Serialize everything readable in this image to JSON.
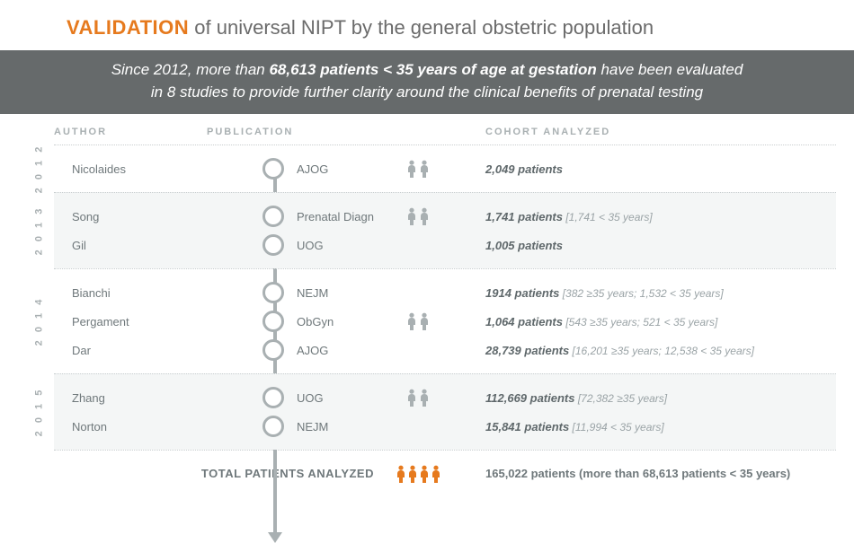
{
  "title": {
    "highlight": "VALIDATION",
    "rest": " of universal NIPT by the general obstetric population"
  },
  "banner": {
    "l1_pre": "Since 2012, more than ",
    "l1_bold": "68,613 patients < 35 years of age at gestation",
    "l1_post": " have been evaluated",
    "l2": "in 8 studies to provide further clarity around the clinical benefits of prenatal testing"
  },
  "headers": {
    "author": "AUTHOR",
    "publication": "PUBLICATION",
    "cohort": "COHORT ANALYZED"
  },
  "colors": {
    "accent": "#e67a1e",
    "grey": "#a9b0b2"
  },
  "years": [
    {
      "year": "2012",
      "alt": false,
      "iconRow": 0,
      "studies": [
        {
          "author": "Nicolaides",
          "pub": "AJOG",
          "bold": "2,049 patients",
          "note": ""
        }
      ]
    },
    {
      "year": "2013",
      "alt": true,
      "iconRow": 0,
      "studies": [
        {
          "author": "Song",
          "pub": "Prenatal Diagn",
          "bold": "1,741 patients",
          "note": " [1,741 < 35 years]"
        },
        {
          "author": "Gil",
          "pub": "UOG",
          "bold": "1,005 patients",
          "note": ""
        }
      ]
    },
    {
      "year": "2014",
      "alt": false,
      "iconRow": 1,
      "studies": [
        {
          "author": "Bianchi",
          "pub": "NEJM",
          "bold": "1914 patients",
          "note": " [382 ≥35 years; 1,532 < 35 years]"
        },
        {
          "author": "Pergament",
          "pub": "ObGyn",
          "bold": "1,064 patients",
          "note": " [543 ≥35 years; 521 < 35 years]"
        },
        {
          "author": "Dar",
          "pub": "AJOG",
          "bold": "28,739 patients",
          "note": " [16,201 ≥35 years; 12,538 < 35 years]"
        }
      ]
    },
    {
      "year": "2015",
      "alt": true,
      "iconRow": 0,
      "studies": [
        {
          "author": "Zhang",
          "pub": "UOG",
          "bold": "112,669 patients",
          "note": " [72,382 ≥35 years]"
        },
        {
          "author": "Norton",
          "pub": "NEJM",
          "bold": "15,841 patients",
          "note": "  [11,994 < 35 years]"
        }
      ]
    }
  ],
  "total": {
    "label": "TOTAL PATIENTS ANALYZED",
    "text": "165,022 patients (more than 68,613 patients < 35 years)"
  }
}
